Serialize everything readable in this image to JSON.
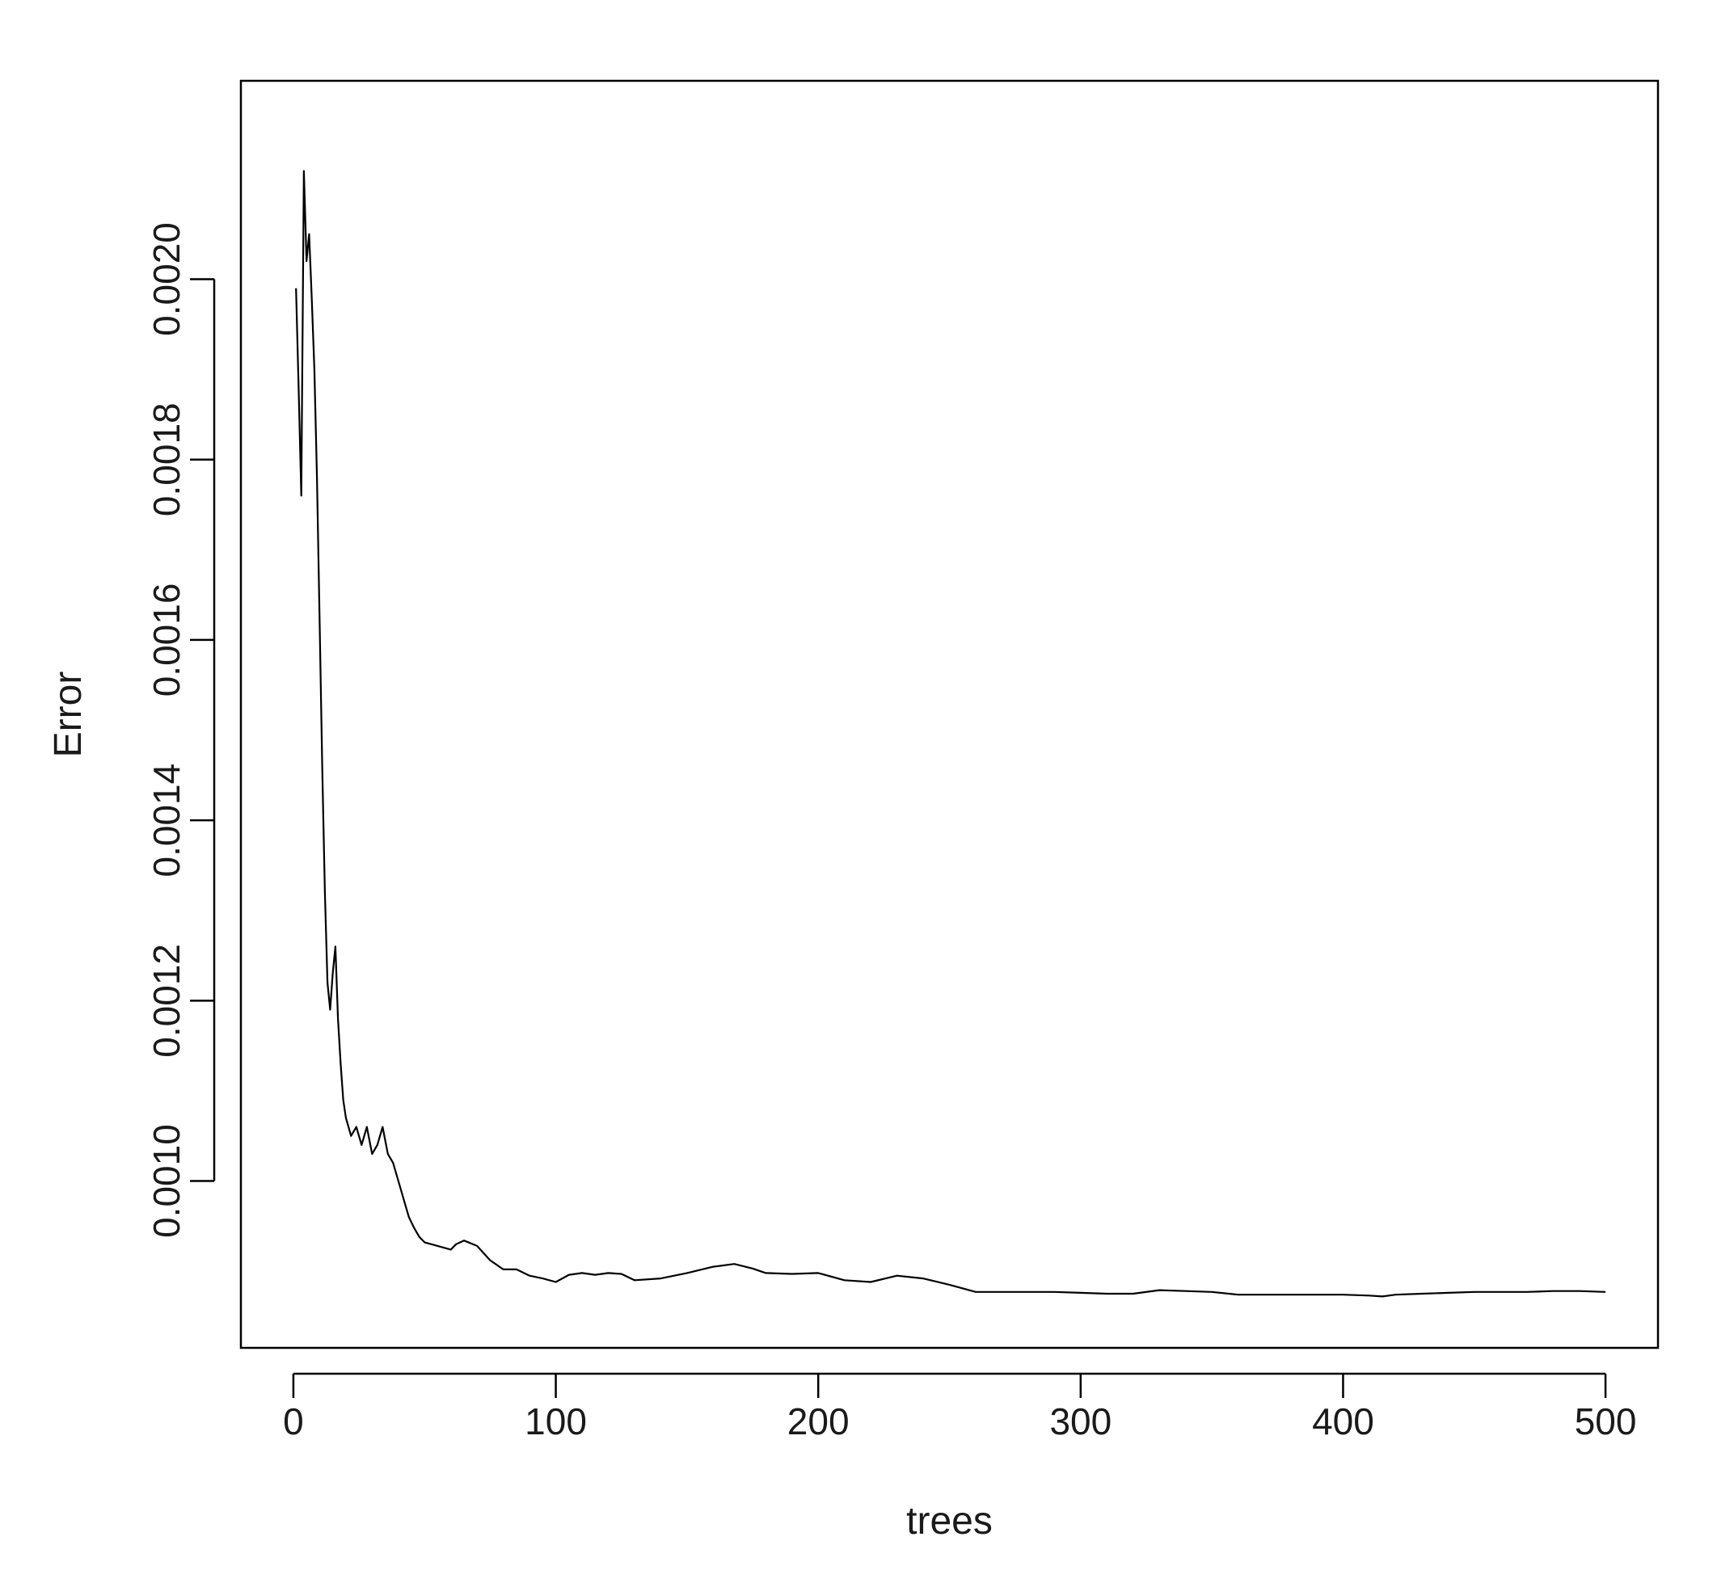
{
  "chart_data": {
    "type": "line",
    "title": "",
    "xlabel": "trees",
    "ylabel": "Error",
    "xlim": [
      -20,
      520
    ],
    "ylim": [
      0.000815,
      0.00222
    ],
    "xticks": [
      0,
      100,
      200,
      300,
      400,
      500
    ],
    "xtick_labels": [
      "0",
      "100",
      "200",
      "300",
      "400",
      "500"
    ],
    "yticks": [
      0.001,
      0.0012,
      0.0014,
      0.0016,
      0.0018,
      0.002
    ],
    "ytick_labels": [
      "0.0010",
      "0.0012",
      "0.0014",
      "0.0016",
      "0.0018",
      "0.0020"
    ],
    "grid": false,
    "line_color": "#000000",
    "series": [
      {
        "x": [
          1,
          2,
          3,
          4,
          5,
          6,
          7,
          8,
          9,
          10,
          11,
          12,
          13,
          14,
          15,
          16,
          17,
          18,
          19,
          20,
          22,
          24,
          26,
          28,
          30,
          32,
          34,
          36,
          38,
          40,
          42,
          44,
          46,
          48,
          50,
          55,
          60,
          62,
          65,
          70,
          75,
          80,
          85,
          90,
          95,
          100,
          105,
          110,
          115,
          120,
          125,
          130,
          140,
          150,
          160,
          168,
          175,
          180,
          190,
          200,
          210,
          220,
          230,
          240,
          250,
          260,
          270,
          280,
          290,
          300,
          310,
          320,
          330,
          340,
          350,
          360,
          370,
          380,
          390,
          400,
          410,
          415,
          420,
          430,
          440,
          450,
          460,
          470,
          480,
          490,
          500
        ],
        "y": [
          0.00199,
          0.00188,
          0.00176,
          0.00212,
          0.00202,
          0.00205,
          0.00198,
          0.0019,
          0.00178,
          0.00162,
          0.00146,
          0.00132,
          0.00122,
          0.00119,
          0.00123,
          0.00126,
          0.00118,
          0.00113,
          0.00109,
          0.00107,
          0.00105,
          0.00106,
          0.00104,
          0.00106,
          0.00103,
          0.00104,
          0.00106,
          0.00103,
          0.00102,
          0.001,
          0.00098,
          0.00096,
          0.000948,
          0.000938,
          0.000932,
          0.000928,
          0.000924,
          0.00093,
          0.000934,
          0.000928,
          0.000912,
          0.000902,
          0.000902,
          0.000895,
          0.000892,
          0.000888,
          0.000896,
          0.000898,
          0.000896,
          0.000898,
          0.000897,
          0.00089,
          0.000892,
          0.000898,
          0.000905,
          0.000908,
          0.000903,
          0.000898,
          0.000897,
          0.000898,
          0.00089,
          0.000888,
          0.000895,
          0.000892,
          0.000885,
          0.000877,
          0.000877,
          0.000877,
          0.000877,
          0.000876,
          0.000875,
          0.000875,
          0.000879,
          0.000878,
          0.000877,
          0.000874,
          0.000874,
          0.000874,
          0.000874,
          0.000874,
          0.000873,
          0.000872,
          0.000874,
          0.000875,
          0.000876,
          0.000877,
          0.000877,
          0.000877,
          0.000878,
          0.000878,
          0.000877
        ]
      }
    ]
  }
}
